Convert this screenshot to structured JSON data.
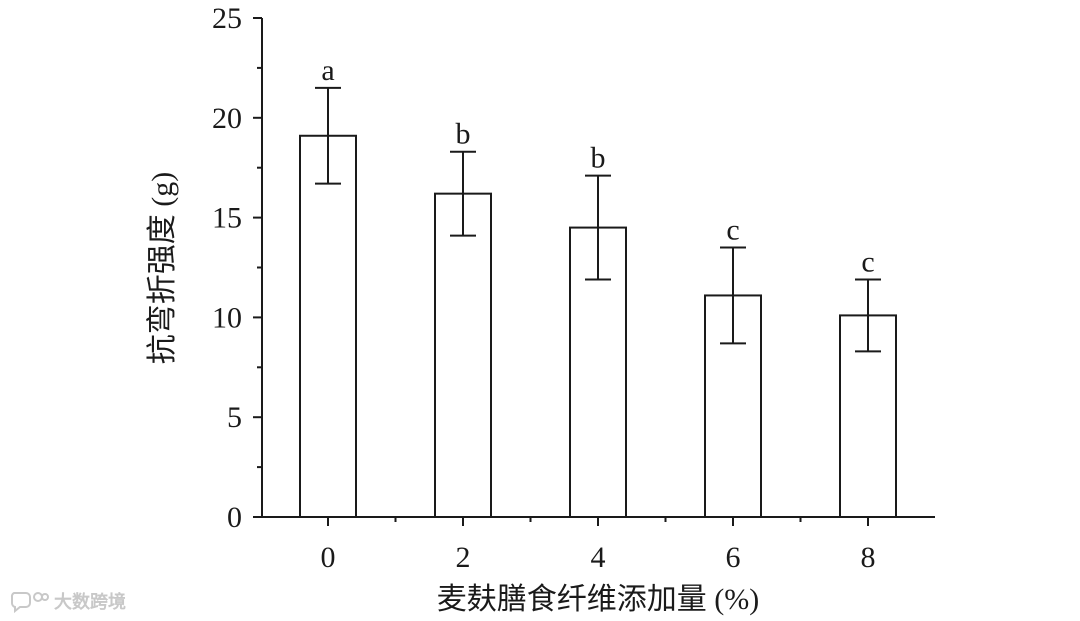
{
  "chart_data": {
    "type": "bar",
    "categories": [
      "0",
      "2",
      "4",
      "6",
      "8"
    ],
    "values": [
      19.1,
      16.2,
      14.5,
      11.1,
      10.1
    ],
    "error": [
      2.4,
      2.1,
      2.6,
      2.4,
      1.8
    ],
    "significance_letters": [
      "a",
      "b",
      "b",
      "c",
      "c"
    ],
    "ylabel": "抗弯折强度 (g)",
    "xlabel": "麦麸膳食纤维添加量 (%)",
    "ylim": [
      0,
      25
    ],
    "yticks": [
      0,
      5,
      10,
      15,
      20,
      25
    ],
    "bar_fill": "#ffffff",
    "stroke_color": "#1a1a1a",
    "grid": false
  },
  "watermark": {
    "text": "大数跨境",
    "icon": "chat-bubble-logo"
  }
}
